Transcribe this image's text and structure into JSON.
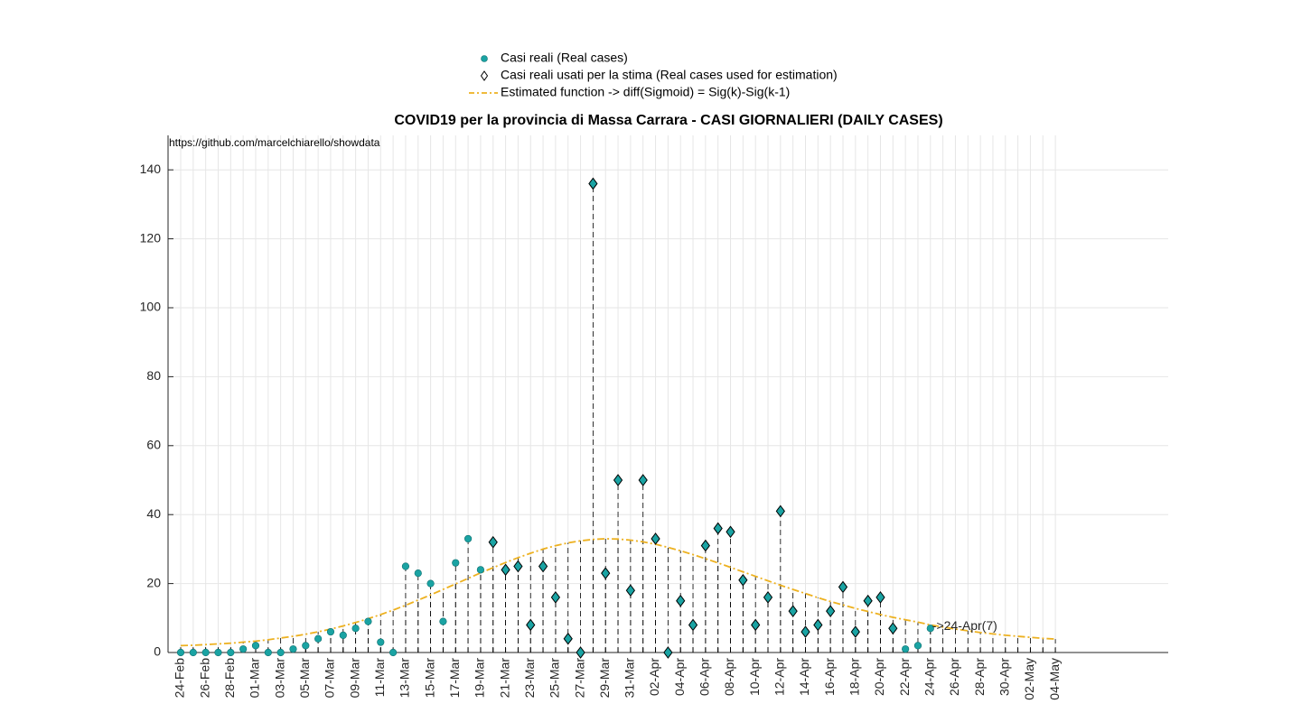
{
  "chart_data": {
    "type": "stem",
    "title": "COVID19 per la provincia di Massa Carrara - CASI GIORNALIERI (DAILY CASES)",
    "source": "https://github.com/marcelchiarello/showdata",
    "annotation": "->24-Apr(7)",
    "categories": [
      "24-Feb",
      null,
      "26-Feb",
      null,
      "28-Feb",
      null,
      "01-Mar",
      null,
      "03-Mar",
      null,
      "05-Mar",
      null,
      "07-Mar",
      null,
      "09-Mar",
      null,
      "11-Mar",
      null,
      "13-Mar",
      null,
      "15-Mar",
      null,
      "17-Mar",
      null,
      "19-Mar",
      null,
      "21-Mar",
      null,
      "23-Mar",
      null,
      "25-Mar",
      null,
      "27-Mar",
      null,
      "29-Mar",
      null,
      "31-Mar",
      null,
      "02-Apr",
      null,
      "04-Apr",
      null,
      "06-Apr",
      null,
      "08-Apr",
      null,
      "10-Apr",
      null,
      "12-Apr",
      null,
      "14-Apr",
      null,
      "16-Apr",
      null,
      "18-Apr",
      null,
      "20-Apr",
      null,
      "22-Apr",
      null,
      "24-Apr",
      null,
      "26-Apr",
      null,
      "28-Apr",
      null,
      "30-Apr",
      null,
      "02-May",
      null,
      "04-May"
    ],
    "series": [
      {
        "name": "Casi reali (Real cases)",
        "color": "#1aa3a3",
        "marker": "circle",
        "values": [
          0,
          0,
          0,
          0,
          0,
          1,
          2,
          0,
          0,
          1,
          2,
          4,
          6,
          5,
          7,
          9,
          3,
          0,
          25,
          23,
          20,
          9,
          26,
          33,
          24,
          32,
          24,
          25,
          8,
          25,
          16,
          4,
          0,
          136,
          23,
          50,
          18,
          50,
          33,
          0,
          15,
          8,
          31,
          36,
          35,
          21,
          8,
          16,
          41,
          12,
          6,
          8,
          12,
          19,
          6,
          15,
          16,
          7,
          1,
          2,
          7,
          null,
          null,
          null,
          null,
          null,
          null,
          null,
          null,
          null,
          null
        ]
      },
      {
        "name": "Casi reali usati per la stima (Real cases used for estimation)",
        "color": "#1aa3a3",
        "marker": "diamond",
        "values": [
          null,
          null,
          null,
          null,
          null,
          null,
          null,
          null,
          null,
          null,
          null,
          null,
          null,
          null,
          null,
          null,
          null,
          null,
          null,
          null,
          null,
          null,
          null,
          null,
          null,
          32,
          24,
          25,
          8,
          25,
          16,
          4,
          0,
          136,
          23,
          50,
          18,
          50,
          33,
          0,
          15,
          8,
          31,
          36,
          35,
          21,
          8,
          16,
          41,
          12,
          6,
          8,
          12,
          19,
          6,
          15,
          16,
          7,
          null,
          null,
          null,
          null,
          null,
          null,
          null,
          null,
          null,
          null,
          null,
          null,
          null
        ]
      },
      {
        "name": "Estimated function -> diff(Sigmoid) = Sig(k)-Sig(k-1)",
        "color": "#edb120",
        "marker": "line",
        "values": [
          2.0,
          2.1,
          2.3,
          2.5,
          2.7,
          3.0,
          3.3,
          3.7,
          4.2,
          4.7,
          5.3,
          6.0,
          6.8,
          7.7,
          8.7,
          9.8,
          11.0,
          12.3,
          13.7,
          15.2,
          16.7,
          18.3,
          19.9,
          21.5,
          23.1,
          24.6,
          26.1,
          27.5,
          28.8,
          30.0,
          31.0,
          31.8,
          32.4,
          32.8,
          33.0,
          32.9,
          32.6,
          32.1,
          31.4,
          30.5,
          29.5,
          28.4,
          27.2,
          26.0,
          24.7,
          23.4,
          22.1,
          20.8,
          19.5,
          18.3,
          17.1,
          15.9,
          14.8,
          13.8,
          12.8,
          11.9,
          11.0,
          10.2,
          9.5,
          8.8,
          8.0,
          7.4,
          6.8,
          6.3,
          5.8,
          5.4,
          5.0,
          4.7,
          4.4,
          4.1,
          3.9
        ]
      }
    ],
    "ylim": [
      0,
      150
    ],
    "yticks": [
      0,
      20,
      40,
      60,
      80,
      100,
      120,
      140
    ],
    "grid": true
  }
}
